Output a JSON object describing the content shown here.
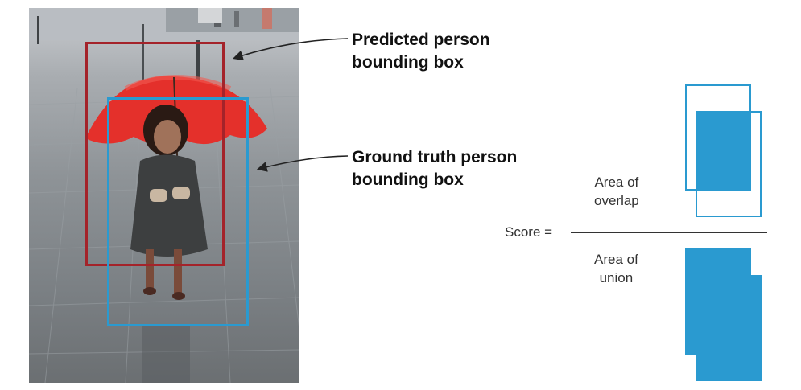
{
  "callouts": {
    "predicted": [
      "Predicted person",
      "bounding box"
    ],
    "ground_truth": [
      "Ground truth person",
      "bounding box"
    ]
  },
  "formula": {
    "lhs": "Score =",
    "numerator": [
      "Area of",
      "overlap"
    ],
    "denominator": [
      "Area of",
      "union"
    ]
  },
  "colors": {
    "predicted_box": "#a4232a",
    "ground_truth_box": "#2a9ad0",
    "area_fill": "#2a9ad0"
  }
}
